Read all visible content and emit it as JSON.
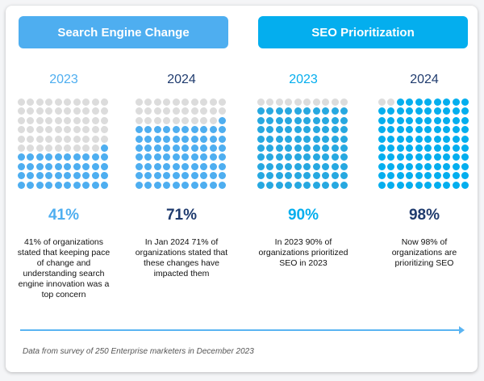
{
  "headers": {
    "left": "Search Engine Change",
    "right": "SEO Prioritization"
  },
  "columns": [
    {
      "year": "2023",
      "pct": "41%",
      "value": 41,
      "desc": "41% of organizations stated that keeping pace of change and understanding search engine innovation was a top concern",
      "year_color": "#4eaef0",
      "pct_color": "#4eaef0",
      "fill_color": "#4eaef0"
    },
    {
      "year": "2024",
      "pct": "71%",
      "value": 71,
      "desc": "In Jan 2024 71% of organizations stated that these changes have impacted them",
      "year_color": "#1f3b6e",
      "pct_color": "#1f3b6e",
      "fill_color": "#4eaef0"
    },
    {
      "year": "2023",
      "pct": "90%",
      "value": 90,
      "desc": "In 2023 90% of organizations prioritized SEO in 2023",
      "year_color": "#04aeee",
      "pct_color": "#04aeee",
      "fill_color": "#27a8e0"
    },
    {
      "year": "2024",
      "pct": "98%",
      "value": 98,
      "desc": "Now 98% of organizations are prioritizing SEO",
      "year_color": "#1f3b6e",
      "pct_color": "#1f3b6e",
      "fill_color": "#04aeee"
    }
  ],
  "footnote": "Data from survey of 250 Enterprise marketers in December 2023"
}
